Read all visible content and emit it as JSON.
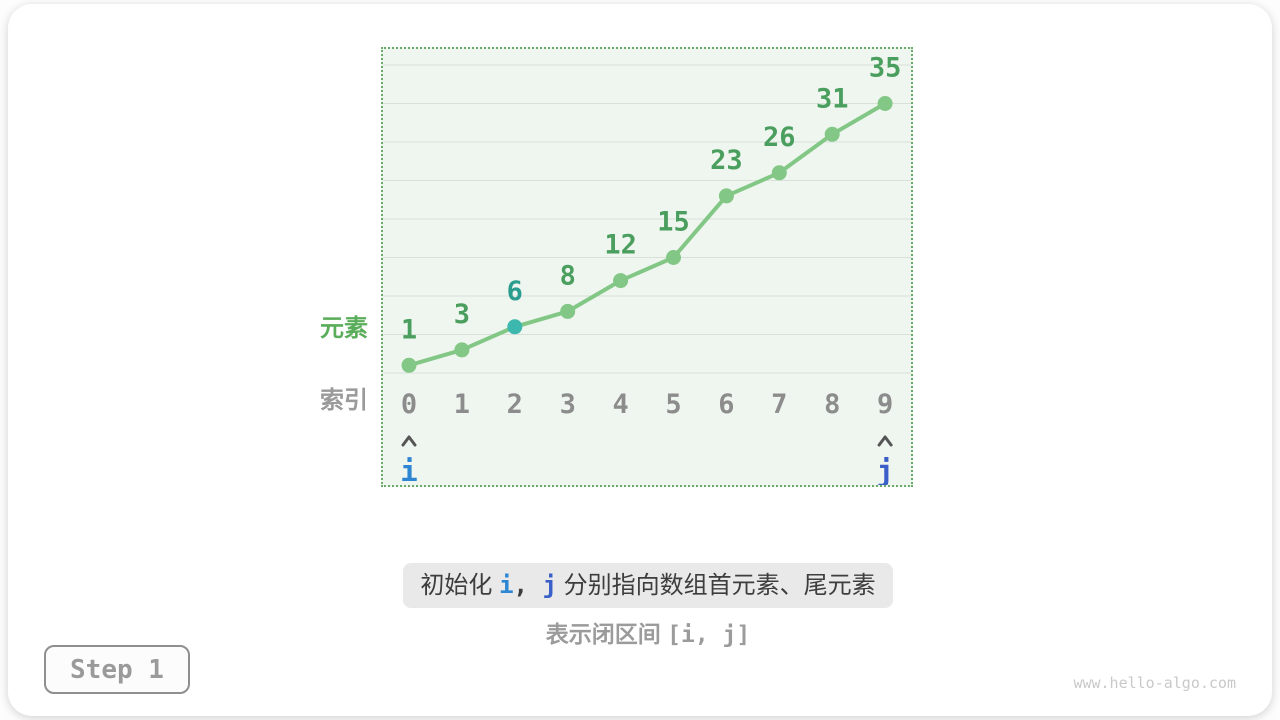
{
  "figure": {
    "step_label": "Step 1",
    "watermark": "www.hello-algo.com",
    "y_axis_label": "元素",
    "x_axis_label": "索引",
    "caption_segments": [
      {
        "text": "初始化 ",
        "style": "cjk"
      },
      {
        "text": "i",
        "style": "pointer-i"
      },
      {
        "text": ", ",
        "style": "mono-dark"
      },
      {
        "text": "j",
        "style": "pointer-j"
      },
      {
        "text": " 分别指向数组首元素、尾元素",
        "style": "cjk"
      }
    ],
    "subcaption_segments": [
      {
        "text": "表示闭区间 ",
        "style": "cjk-bold"
      },
      {
        "text": "[i, j]",
        "style": "mono-gray"
      }
    ]
  },
  "chart_data": {
    "type": "line",
    "title": "",
    "xlabel": "索引",
    "ylabel": "元素",
    "x": [
      0,
      1,
      2,
      3,
      4,
      5,
      6,
      7,
      8,
      9
    ],
    "values": [
      1,
      3,
      6,
      8,
      12,
      15,
      23,
      26,
      31,
      35
    ],
    "highlighted_index": 2,
    "ylim": [
      0,
      40
    ],
    "grid_step": 5,
    "grid": "horizontal",
    "legend": "none",
    "pointers": [
      {
        "name": "i",
        "index": 0
      },
      {
        "name": "j",
        "index": 9
      }
    ],
    "annotations": [
      "初始化 i, j 分别指向数组首元素、尾元素",
      "表示闭区间 [i, j]"
    ]
  },
  "colors": {
    "line": "#82c785",
    "value_label": "#4a9e5e",
    "highlight": "#3cb8ae",
    "highlight_label": "#2a9d8f",
    "grid": "#d8e0d8",
    "chart_bg": "#eff6ef",
    "border": "#6aaa6a",
    "index": "#8c8c8c",
    "caret": "#555555",
    "i": "#2e86d2",
    "j": "#3a5fc8",
    "ylabel": "#5aad5a",
    "xlabel": "#9a9a9a",
    "caption_text": "#3d3d3d",
    "caption_bg": "#e9e9e9",
    "subcaption": "#9b9b9b",
    "step": "#9a9a9a",
    "watermark": "#c9c9c9"
  }
}
